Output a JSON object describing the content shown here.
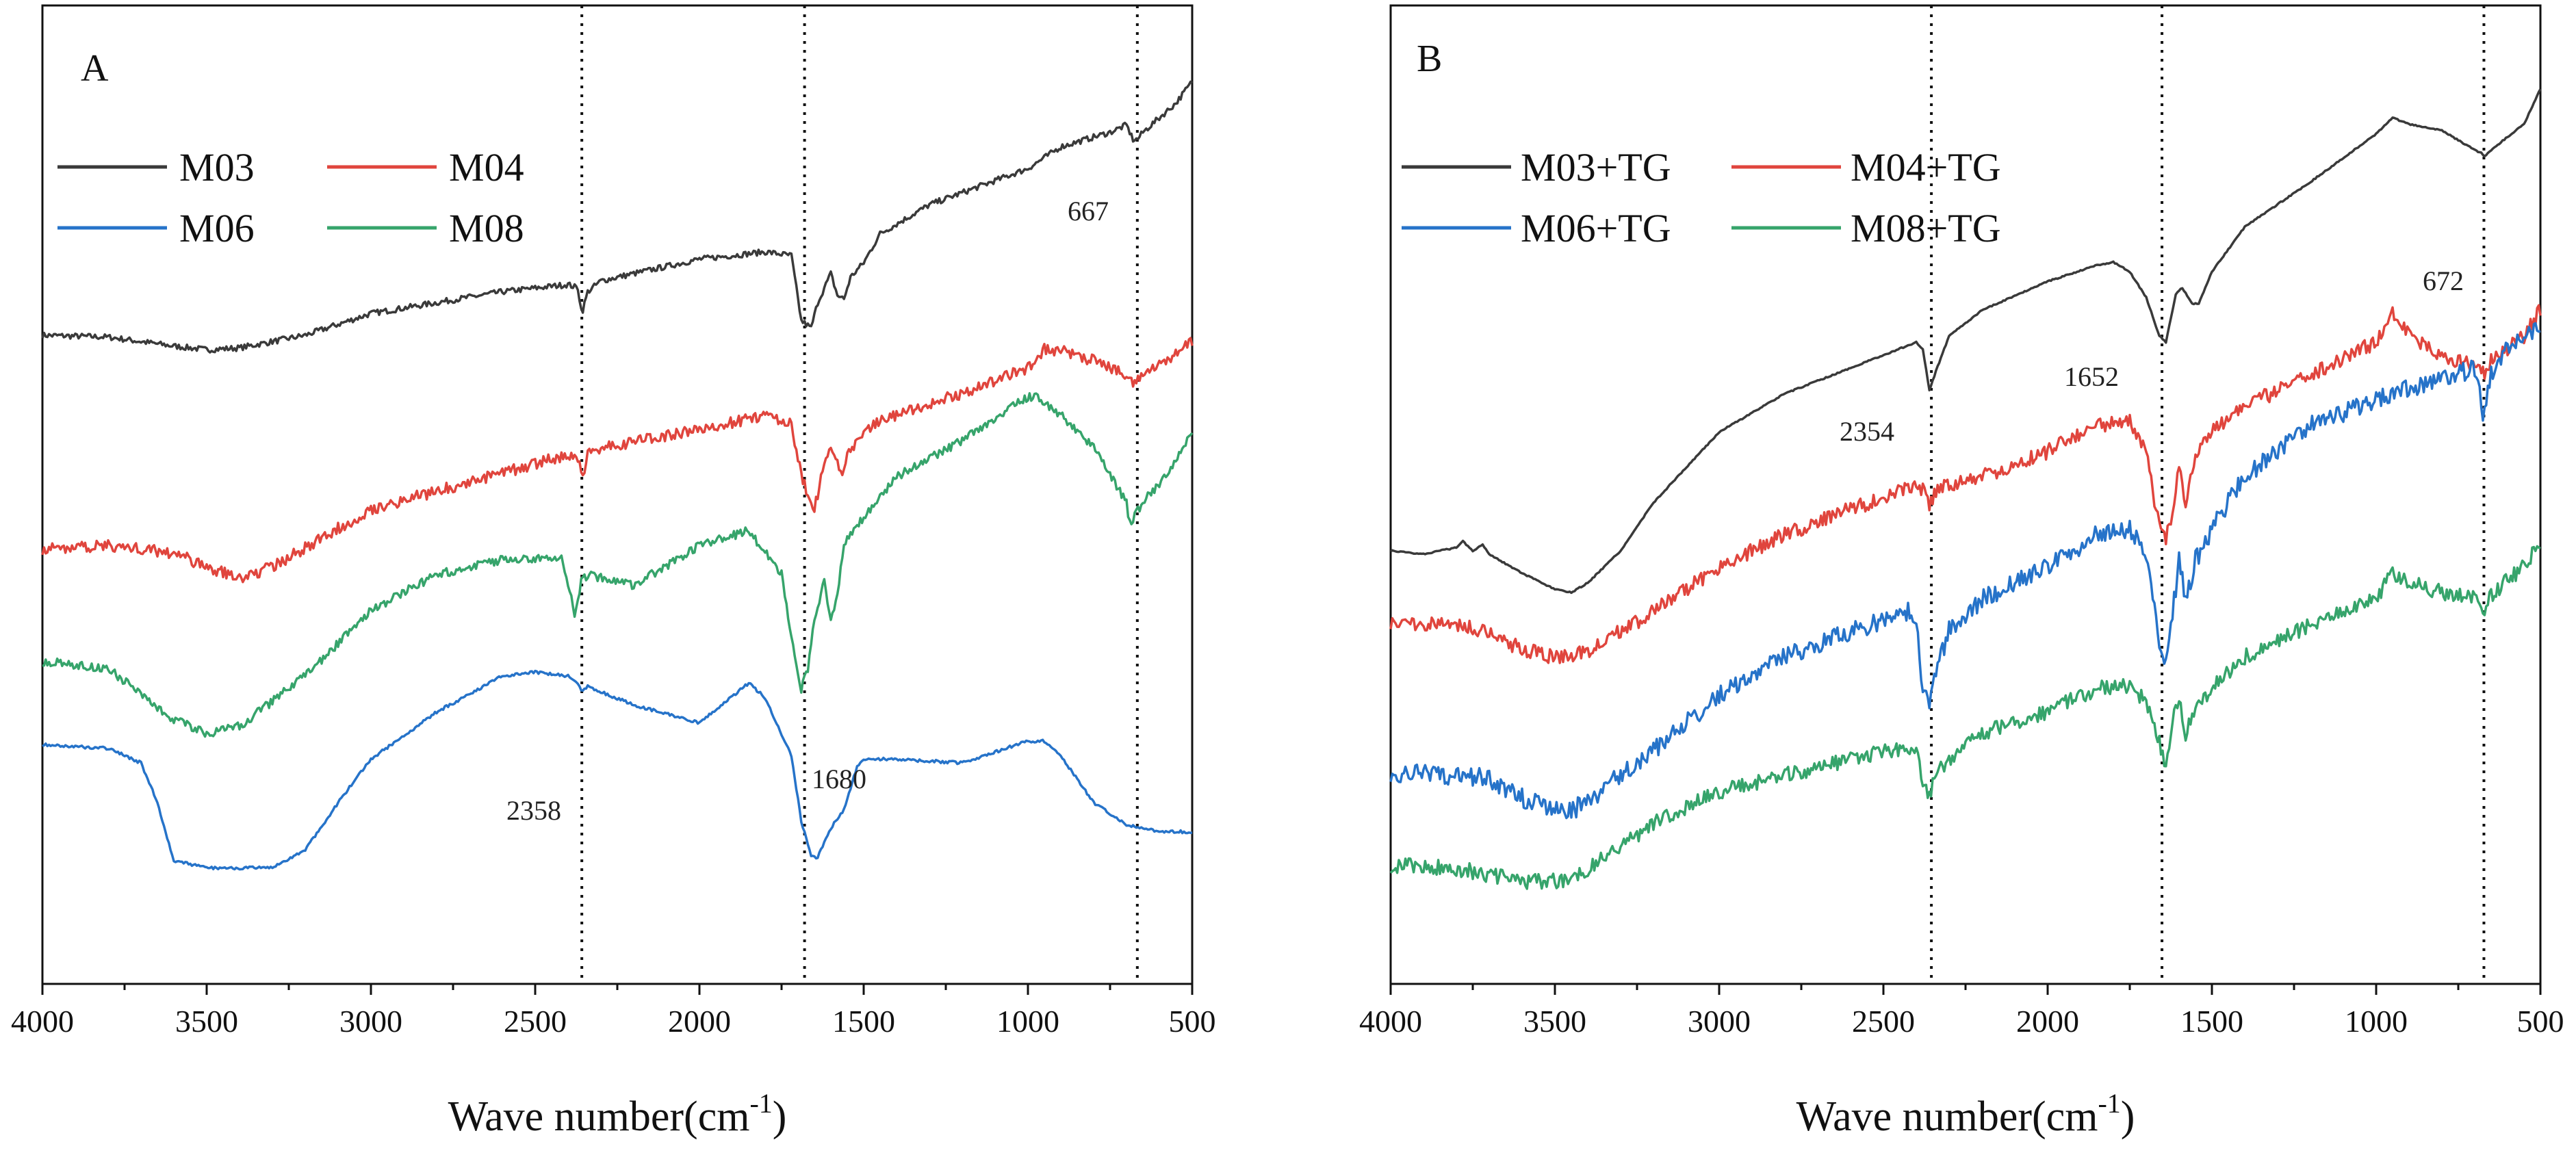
{
  "chart_data": [
    {
      "panel_label": "A",
      "type": "line",
      "xlabel": "Wave number(cm",
      "xlabel_sup": "-1",
      "xlabel_close": ")",
      "xlim": [
        4000,
        500
      ],
      "x_ticks": [
        4000,
        3500,
        3000,
        2500,
        2000,
        1500,
        1000,
        500
      ],
      "ylabel": "",
      "y_ticks_shown": false,
      "grid": false,
      "legend_position": "top-left",
      "reference_lines": [
        2358,
        1680,
        667
      ],
      "annotations": [
        {
          "text": "2358",
          "x": 2358
        },
        {
          "text": "1680",
          "x": 1680
        },
        {
          "text": "667",
          "x": 667
        }
      ],
      "series": [
        {
          "name": "M03",
          "color": "#3a3a3a",
          "noise": 0.004,
          "x": [
            4000,
            3800,
            3600,
            3500,
            3400,
            3200,
            3000,
            2800,
            2600,
            2400,
            2370,
            2358,
            2340,
            2300,
            2000,
            1800,
            1720,
            1690,
            1660,
            1640,
            1600,
            1580,
            1560,
            1540,
            1500,
            1450,
            1300,
            1000,
            900,
            750,
            700,
            680,
            667,
            650,
            600,
            550,
            500
          ],
          "y": [
            1.64,
            1.635,
            1.61,
            1.6,
            1.605,
            1.64,
            1.7,
            1.73,
            1.76,
            1.78,
            1.77,
            1.7,
            1.76,
            1.79,
            1.85,
            1.87,
            1.86,
            1.68,
            1.66,
            1.73,
            1.81,
            1.75,
            1.74,
            1.8,
            1.84,
            1.92,
            2.0,
            2.1,
            2.16,
            2.2,
            2.22,
            2.18,
            2.18,
            2.2,
            2.24,
            2.28,
            2.34
          ]
        },
        {
          "name": "M04",
          "color": "#e0453d",
          "noise": 0.008,
          "x": [
            4000,
            3800,
            3600,
            3500,
            3400,
            3300,
            3000,
            2800,
            2600,
            2400,
            2370,
            2355,
            2340,
            2300,
            2000,
            1800,
            1720,
            1690,
            1650,
            1620,
            1600,
            1570,
            1540,
            1500,
            1400,
            1200,
            1000,
            950,
            900,
            800,
            750,
            700,
            680,
            650,
            600,
            550,
            500
          ],
          "y": [
            1.05,
            1.06,
            1.04,
            1.0,
            0.97,
            1.0,
            1.16,
            1.21,
            1.26,
            1.31,
            1.3,
            1.25,
            1.31,
            1.33,
            1.38,
            1.42,
            1.4,
            1.25,
            1.16,
            1.28,
            1.33,
            1.26,
            1.32,
            1.38,
            1.42,
            1.48,
            1.55,
            1.6,
            1.6,
            1.57,
            1.55,
            1.53,
            1.5,
            1.53,
            1.56,
            1.59,
            1.62
          ]
        },
        {
          "name": "M06",
          "color": "#2673c9",
          "noise": 0.002,
          "x": [
            4000,
            3800,
            3700,
            3650,
            3600,
            3500,
            3300,
            3200,
            3100,
            3000,
            2800,
            2600,
            2500,
            2400,
            2370,
            2358,
            2340,
            2200,
            2000,
            1850,
            1800,
            1720,
            1690,
            1660,
            1640,
            1600,
            1560,
            1520,
            1500,
            1400,
            1200,
            1000,
            950,
            900,
            800,
            700,
            600,
            500
          ],
          "y": [
            0.51,
            0.5,
            0.46,
            0.35,
            0.19,
            0.17,
            0.17,
            0.22,
            0.35,
            0.47,
            0.6,
            0.7,
            0.71,
            0.7,
            0.68,
            0.66,
            0.67,
            0.62,
            0.57,
            0.68,
            0.64,
            0.48,
            0.3,
            0.2,
            0.2,
            0.28,
            0.33,
            0.45,
            0.47,
            0.47,
            0.46,
            0.52,
            0.52,
            0.48,
            0.35,
            0.29,
            0.27,
            0.27
          ]
        },
        {
          "name": "M08",
          "color": "#36a46b",
          "noise": 0.006,
          "x": [
            4000,
            3800,
            3600,
            3500,
            3400,
            3200,
            3000,
            2800,
            2600,
            2420,
            2400,
            2380,
            2360,
            2340,
            2200,
            2000,
            1850,
            1750,
            1720,
            1690,
            1670,
            1650,
            1620,
            1600,
            1580,
            1560,
            1500,
            1400,
            1200,
            1000,
            970,
            900,
            800,
            700,
            690,
            650,
            600,
            550,
            500
          ],
          "y": [
            0.74,
            0.72,
            0.58,
            0.54,
            0.56,
            0.7,
            0.88,
            0.98,
            1.02,
            1.03,
            0.95,
            0.87,
            0.96,
            0.98,
            0.95,
            1.06,
            1.1,
            0.98,
            0.8,
            0.66,
            0.72,
            0.86,
            0.96,
            0.85,
            0.92,
            1.06,
            1.14,
            1.25,
            1.35,
            1.47,
            1.47,
            1.42,
            1.33,
            1.18,
            1.12,
            1.18,
            1.23,
            1.29,
            1.38
          ]
        }
      ]
    },
    {
      "panel_label": "B",
      "type": "line",
      "xlabel": "Wave number(cm",
      "xlabel_sup": "-1",
      "xlabel_close": ")",
      "xlim": [
        4000,
        500
      ],
      "x_ticks": [
        4000,
        3500,
        3000,
        2500,
        2000,
        1500,
        1000,
        500
      ],
      "ylabel": "",
      "y_ticks_shown": false,
      "grid": false,
      "legend_position": "top-left",
      "reference_lines": [
        2354,
        1652,
        672
      ],
      "annotations": [
        {
          "text": "2354",
          "x": 2354
        },
        {
          "text": "1652",
          "x": 1652
        },
        {
          "text": "672",
          "x": 672
        }
      ],
      "series": [
        {
          "name": "M03+TG",
          "color": "#3a3a3a",
          "noise": 0.001,
          "x": [
            4000,
            3900,
            3800,
            3780,
            3750,
            3720,
            3700,
            3600,
            3500,
            3450,
            3400,
            3300,
            3200,
            3000,
            2800,
            2600,
            2400,
            2380,
            2360,
            2340,
            2300,
            2200,
            2000,
            1850,
            1800,
            1750,
            1700,
            1660,
            1640,
            1610,
            1590,
            1560,
            1540,
            1500,
            1400,
            1200,
            1000,
            950,
            900,
            800,
            700,
            680,
            670,
            650,
            600,
            550,
            500
          ],
          "y": [
            1.05,
            1.04,
            1.06,
            1.08,
            1.05,
            1.07,
            1.04,
            0.98,
            0.93,
            0.92,
            0.95,
            1.05,
            1.2,
            1.42,
            1.54,
            1.62,
            1.7,
            1.68,
            1.55,
            1.61,
            1.72,
            1.8,
            1.89,
            1.94,
            1.95,
            1.92,
            1.84,
            1.72,
            1.7,
            1.85,
            1.87,
            1.82,
            1.82,
            1.92,
            2.06,
            2.2,
            2.35,
            2.4,
            2.38,
            2.36,
            2.3,
            2.29,
            2.28,
            2.3,
            2.34,
            2.38,
            2.49
          ]
        },
        {
          "name": "M04+TG",
          "color": "#e0453d",
          "noise": 0.012,
          "x": [
            4000,
            3800,
            3700,
            3600,
            3500,
            3450,
            3400,
            3200,
            3000,
            2800,
            2600,
            2400,
            2380,
            2360,
            2340,
            2200,
            2000,
            1850,
            1750,
            1700,
            1660,
            1640,
            1620,
            1600,
            1580,
            1550,
            1500,
            1400,
            1200,
            1000,
            950,
            900,
            800,
            700,
            680,
            670,
            650,
            600,
            550,
            500
          ],
          "y": [
            0.83,
            0.82,
            0.8,
            0.74,
            0.72,
            0.72,
            0.74,
            0.86,
            1.0,
            1.1,
            1.18,
            1.25,
            1.24,
            1.18,
            1.24,
            1.28,
            1.36,
            1.44,
            1.45,
            1.36,
            1.12,
            1.08,
            1.18,
            1.32,
            1.2,
            1.35,
            1.42,
            1.5,
            1.6,
            1.7,
            1.8,
            1.72,
            1.65,
            1.63,
            1.62,
            1.6,
            1.64,
            1.68,
            1.72,
            1.8
          ]
        },
        {
          "name": "M06+TG",
          "color": "#2673c9",
          "noise": 0.015,
          "x": [
            4000,
            3800,
            3700,
            3600,
            3500,
            3450,
            3400,
            3200,
            3000,
            2800,
            2600,
            2420,
            2400,
            2380,
            2360,
            2340,
            2300,
            2200,
            2000,
            1850,
            1750,
            1700,
            1660,
            1640,
            1620,
            1600,
            1580,
            1550,
            1500,
            1400,
            1200,
            1000,
            900,
            800,
            700,
            690,
            680,
            672,
            660,
            600,
            550,
            500
          ],
          "y": [
            0.36,
            0.35,
            0.34,
            0.28,
            0.24,
            0.24,
            0.27,
            0.43,
            0.6,
            0.72,
            0.8,
            0.86,
            0.85,
            0.6,
            0.58,
            0.68,
            0.8,
            0.9,
            1.0,
            1.1,
            1.12,
            1.05,
            0.75,
            0.72,
            0.85,
            1.02,
            0.9,
            1.02,
            1.12,
            1.28,
            1.44,
            1.52,
            1.56,
            1.58,
            1.62,
            1.6,
            1.5,
            1.45,
            1.58,
            1.68,
            1.72,
            1.76
          ]
        },
        {
          "name": "M08+TG",
          "color": "#36a46b",
          "noise": 0.012,
          "x": [
            4000,
            3800,
            3700,
            3600,
            3500,
            3450,
            3400,
            3200,
            3000,
            2800,
            2600,
            2420,
            2400,
            2380,
            2360,
            2340,
            2300,
            2200,
            2000,
            1850,
            1750,
            1700,
            1660,
            1640,
            1620,
            1600,
            1580,
            1550,
            1500,
            1400,
            1200,
            1000,
            950,
            900,
            800,
            700,
            680,
            672,
            660,
            600,
            550,
            500
          ],
          "y": [
            0.07,
            0.06,
            0.04,
            0.02,
            0.02,
            0.03,
            0.06,
            0.2,
            0.3,
            0.35,
            0.4,
            0.44,
            0.43,
            0.32,
            0.28,
            0.36,
            0.4,
            0.48,
            0.55,
            0.62,
            0.63,
            0.58,
            0.45,
            0.38,
            0.52,
            0.58,
            0.48,
            0.56,
            0.62,
            0.72,
            0.82,
            0.9,
            0.98,
            0.95,
            0.92,
            0.9,
            0.86,
            0.83,
            0.9,
            0.96,
            1.0,
            1.08
          ]
        }
      ]
    }
  ]
}
